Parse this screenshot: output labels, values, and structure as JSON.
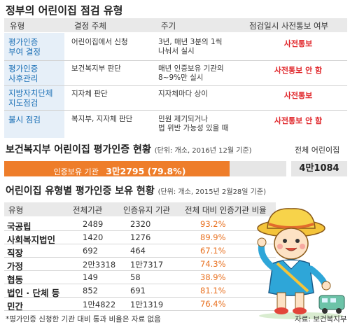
{
  "section1": {
    "title": "정부의 어린이집 점검 유형",
    "headers": [
      "유형",
      "결정 주체",
      "주기",
      "점검일시 사전통보 여부"
    ],
    "rows": [
      {
        "type": [
          "평가인증",
          "부여 결정"
        ],
        "subject": [
          "어린이집에서 신청"
        ],
        "cycle": [
          "3년, 매년 3분의 1씩",
          "나눠서 실시"
        ],
        "notice": "사전통보"
      },
      {
        "type": [
          "평가인증",
          "사후관리"
        ],
        "subject": [
          "보건복지부 판단"
        ],
        "cycle": [
          "매년 인증보유 기관의",
          "8~9%만 실시"
        ],
        "notice": "사전통보 안 함"
      },
      {
        "type": [
          "지방자치단체",
          "지도점검"
        ],
        "subject": [
          "지자체 판단"
        ],
        "cycle": [
          "지자체마다 상이"
        ],
        "notice": "사전통보"
      },
      {
        "type": [
          "불시 점검"
        ],
        "subject": [
          "복지부, 지자체 판단"
        ],
        "cycle": [
          "민원 제기되거나",
          "법 위반 가능성 있을 때"
        ],
        "notice": "사전통보 안 함"
      }
    ]
  },
  "section2": {
    "title": "보건복지부 어린이집 평가인증 현황",
    "subtitle": "(단위: 개소, 2016년 12월 기준)",
    "total_label": "전체 어린이집",
    "total_value": "4만1084",
    "progress_label": "인증보유 기관",
    "progress_value": "3만2795 (79.8%)",
    "progress_fraction": 0.798
  },
  "section3": {
    "title": "어린이집 유형별 평가인증 보유 현황",
    "subtitle": "(단위: 개소, 2015년 2월28일 기준)",
    "headers": [
      "유형",
      "전체기관",
      "인증유지 기관",
      "전체 대비 인증기관 비율"
    ],
    "rows": [
      {
        "name": "국공립",
        "total": "2489",
        "kept": "2320",
        "ratio": "93.2%"
      },
      {
        "name": "사회복지법인",
        "total": "1420",
        "kept": "1276",
        "ratio": "89.9%"
      },
      {
        "name": "직장",
        "total": "692",
        "kept": "464",
        "ratio": "67.1%"
      },
      {
        "name": "가정",
        "total": "2만3318",
        "kept": "1만7317",
        "ratio": "74.3%"
      },
      {
        "name": "협동",
        "total": "149",
        "kept": "58",
        "ratio": "38.9%"
      },
      {
        "name": "법인 · 단체 등",
        "total": "852",
        "kept": "691",
        "ratio": "81.1%"
      },
      {
        "name": "민간",
        "total": "1만4822",
        "kept": "1만1319",
        "ratio": "76.4%"
      }
    ]
  },
  "footnote": "*평가인증 신청한 기관 대비 통과 비율은 자료 없음",
  "source": "자료: 보건복지부",
  "colors": {
    "accent": "#ee7d2a",
    "type_blue": "#1a6fb5",
    "notice_red": "#e0262a",
    "ratio_orange": "#e8701f"
  }
}
